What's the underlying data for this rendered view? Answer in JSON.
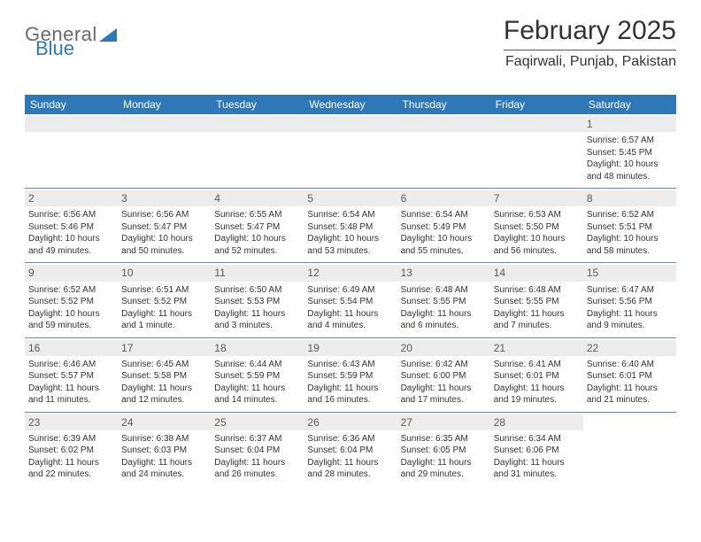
{
  "brand": {
    "part1": "General",
    "part2": "Blue"
  },
  "header": {
    "month_title": "February 2025",
    "location": "Faqirwali, Punjab, Pakistan"
  },
  "style": {
    "header_bg": "#2f78b7",
    "header_text": "#ffffff",
    "daynum_bg": "#ececec",
    "border_color": "#6a89a8",
    "body_text": "#333333",
    "font_size_weekday": 12,
    "font_size_daynum": 12,
    "font_size_info": 10
  },
  "weekdays": [
    "Sunday",
    "Monday",
    "Tuesday",
    "Wednesday",
    "Thursday",
    "Friday",
    "Saturday"
  ],
  "weeks": [
    [
      {
        "empty": true
      },
      {
        "empty": true
      },
      {
        "empty": true
      },
      {
        "empty": true
      },
      {
        "empty": true
      },
      {
        "empty": true
      },
      {
        "day": "1",
        "sunrise": "Sunrise: 6:57 AM",
        "sunset": "Sunset: 5:45 PM",
        "daylight": "Daylight: 10 hours and 48 minutes."
      }
    ],
    [
      {
        "day": "2",
        "sunrise": "Sunrise: 6:56 AM",
        "sunset": "Sunset: 5:46 PM",
        "daylight": "Daylight: 10 hours and 49 minutes."
      },
      {
        "day": "3",
        "sunrise": "Sunrise: 6:56 AM",
        "sunset": "Sunset: 5:47 PM",
        "daylight": "Daylight: 10 hours and 50 minutes."
      },
      {
        "day": "4",
        "sunrise": "Sunrise: 6:55 AM",
        "sunset": "Sunset: 5:47 PM",
        "daylight": "Daylight: 10 hours and 52 minutes."
      },
      {
        "day": "5",
        "sunrise": "Sunrise: 6:54 AM",
        "sunset": "Sunset: 5:48 PM",
        "daylight": "Daylight: 10 hours and 53 minutes."
      },
      {
        "day": "6",
        "sunrise": "Sunrise: 6:54 AM",
        "sunset": "Sunset: 5:49 PM",
        "daylight": "Daylight: 10 hours and 55 minutes."
      },
      {
        "day": "7",
        "sunrise": "Sunrise: 6:53 AM",
        "sunset": "Sunset: 5:50 PM",
        "daylight": "Daylight: 10 hours and 56 minutes."
      },
      {
        "day": "8",
        "sunrise": "Sunrise: 6:52 AM",
        "sunset": "Sunset: 5:51 PM",
        "daylight": "Daylight: 10 hours and 58 minutes."
      }
    ],
    [
      {
        "day": "9",
        "sunrise": "Sunrise: 6:52 AM",
        "sunset": "Sunset: 5:52 PM",
        "daylight": "Daylight: 10 hours and 59 minutes."
      },
      {
        "day": "10",
        "sunrise": "Sunrise: 6:51 AM",
        "sunset": "Sunset: 5:52 PM",
        "daylight": "Daylight: 11 hours and 1 minute."
      },
      {
        "day": "11",
        "sunrise": "Sunrise: 6:50 AM",
        "sunset": "Sunset: 5:53 PM",
        "daylight": "Daylight: 11 hours and 3 minutes."
      },
      {
        "day": "12",
        "sunrise": "Sunrise: 6:49 AM",
        "sunset": "Sunset: 5:54 PM",
        "daylight": "Daylight: 11 hours and 4 minutes."
      },
      {
        "day": "13",
        "sunrise": "Sunrise: 6:48 AM",
        "sunset": "Sunset: 5:55 PM",
        "daylight": "Daylight: 11 hours and 6 minutes."
      },
      {
        "day": "14",
        "sunrise": "Sunrise: 6:48 AM",
        "sunset": "Sunset: 5:55 PM",
        "daylight": "Daylight: 11 hours and 7 minutes."
      },
      {
        "day": "15",
        "sunrise": "Sunrise: 6:47 AM",
        "sunset": "Sunset: 5:56 PM",
        "daylight": "Daylight: 11 hours and 9 minutes."
      }
    ],
    [
      {
        "day": "16",
        "sunrise": "Sunrise: 6:46 AM",
        "sunset": "Sunset: 5:57 PM",
        "daylight": "Daylight: 11 hours and 11 minutes."
      },
      {
        "day": "17",
        "sunrise": "Sunrise: 6:45 AM",
        "sunset": "Sunset: 5:58 PM",
        "daylight": "Daylight: 11 hours and 12 minutes."
      },
      {
        "day": "18",
        "sunrise": "Sunrise: 6:44 AM",
        "sunset": "Sunset: 5:59 PM",
        "daylight": "Daylight: 11 hours and 14 minutes."
      },
      {
        "day": "19",
        "sunrise": "Sunrise: 6:43 AM",
        "sunset": "Sunset: 5:59 PM",
        "daylight": "Daylight: 11 hours and 16 minutes."
      },
      {
        "day": "20",
        "sunrise": "Sunrise: 6:42 AM",
        "sunset": "Sunset: 6:00 PM",
        "daylight": "Daylight: 11 hours and 17 minutes."
      },
      {
        "day": "21",
        "sunrise": "Sunrise: 6:41 AM",
        "sunset": "Sunset: 6:01 PM",
        "daylight": "Daylight: 11 hours and 19 minutes."
      },
      {
        "day": "22",
        "sunrise": "Sunrise: 6:40 AM",
        "sunset": "Sunset: 6:01 PM",
        "daylight": "Daylight: 11 hours and 21 minutes."
      }
    ],
    [
      {
        "day": "23",
        "sunrise": "Sunrise: 6:39 AM",
        "sunset": "Sunset: 6:02 PM",
        "daylight": "Daylight: 11 hours and 22 minutes."
      },
      {
        "day": "24",
        "sunrise": "Sunrise: 6:38 AM",
        "sunset": "Sunset: 6:03 PM",
        "daylight": "Daylight: 11 hours and 24 minutes."
      },
      {
        "day": "25",
        "sunrise": "Sunrise: 6:37 AM",
        "sunset": "Sunset: 6:04 PM",
        "daylight": "Daylight: 11 hours and 26 minutes."
      },
      {
        "day": "26",
        "sunrise": "Sunrise: 6:36 AM",
        "sunset": "Sunset: 6:04 PM",
        "daylight": "Daylight: 11 hours and 28 minutes."
      },
      {
        "day": "27",
        "sunrise": "Sunrise: 6:35 AM",
        "sunset": "Sunset: 6:05 PM",
        "daylight": "Daylight: 11 hours and 29 minutes."
      },
      {
        "day": "28",
        "sunrise": "Sunrise: 6:34 AM",
        "sunset": "Sunset: 6:06 PM",
        "daylight": "Daylight: 11 hours and 31 minutes."
      },
      {
        "empty": true,
        "noBg": true
      }
    ]
  ]
}
